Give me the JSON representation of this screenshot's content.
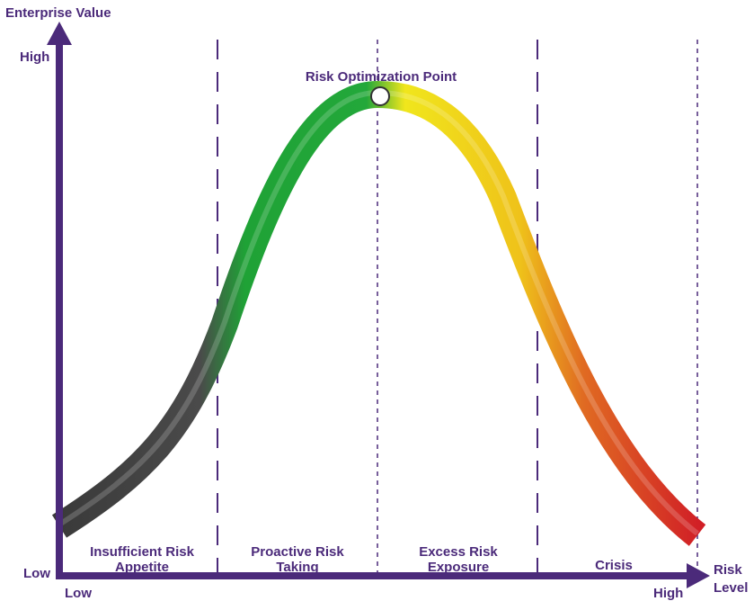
{
  "y_axis": {
    "title": "Enterprise Value",
    "high_label": "High",
    "low_label": "Low"
  },
  "x_axis": {
    "low_label": "Low",
    "high_label": "High",
    "title_line1": "Risk",
    "title_line2": "Level"
  },
  "peak_label": "Risk Optimization Point",
  "zones": [
    {
      "line1": "Insufficient Risk",
      "line2": "Appetite"
    },
    {
      "line1": "Proactive Risk",
      "line2": "Taking"
    },
    {
      "line1": "Excess Risk",
      "line2": "Exposure"
    },
    {
      "line1": "Crisis",
      "line2": ""
    }
  ],
  "colors": {
    "axis": "#4b2a7a",
    "label": "#4b2a7a",
    "curve_low": "#3a3a3a",
    "curve_mid": "#1fa236",
    "curve_peak": "#f0e61c",
    "curve_high": "#d11f26"
  }
}
